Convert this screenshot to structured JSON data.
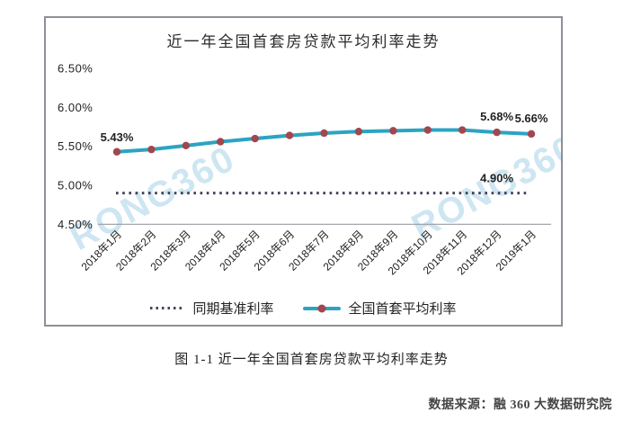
{
  "watermark_text": "RONG360",
  "colors": {
    "series_line": "#2ba4c2",
    "series_marker": "#a1474d",
    "benchmark_dots": "#42425a",
    "watermark": "#cde6f2",
    "frame": "#8f8f98",
    "axis_line": "#9a9aa2",
    "text": "#222222",
    "source_text": "#454545"
  },
  "chart_data": {
    "type": "line",
    "title": "近一年全国首套房贷款平均利率走势",
    "categories": [
      "2018年1月",
      "2018年2月",
      "2018年3月",
      "2018年4月",
      "2018年5月",
      "2018年6月",
      "2018年7月",
      "2018年8月",
      "2018年9月",
      "2018年10月",
      "2018年11月",
      "2018年12月",
      "2019年1月"
    ],
    "series": [
      {
        "name": "同期基准利率",
        "style": "dotted",
        "constant": 4.9
      },
      {
        "name": "全国首套平均利率",
        "style": "line-marker",
        "values": [
          5.43,
          5.46,
          5.51,
          5.56,
          5.6,
          5.64,
          5.67,
          5.69,
          5.7,
          5.71,
          5.71,
          5.68,
          5.66
        ]
      }
    ],
    "yticks": [
      {
        "label": "6.50%",
        "value": 6.5
      },
      {
        "label": "6.00%",
        "value": 6.0
      },
      {
        "label": "5.50%",
        "value": 5.5
      },
      {
        "label": "5.00%",
        "value": 5.0
      },
      {
        "label": "4.50%",
        "value": 4.5
      }
    ],
    "ylim": [
      4.5,
      6.75
    ],
    "grid": "off",
    "legend_position": "bottom",
    "annotations": [
      {
        "text": "5.43%",
        "series": 1,
        "index": 0,
        "dy": -12
      },
      {
        "text": "5.68%",
        "series": 1,
        "index": 11,
        "dy": -13
      },
      {
        "text": "5.66%",
        "series": 1,
        "index": 12,
        "dy": -13
      },
      {
        "text": "4.90%",
        "series": 0,
        "index": 11,
        "dy": -12
      }
    ]
  },
  "caption": "图 1-1 近一年全国首套房贷款平均利率走势",
  "source": "数据来源：融 360 大数据研究院"
}
